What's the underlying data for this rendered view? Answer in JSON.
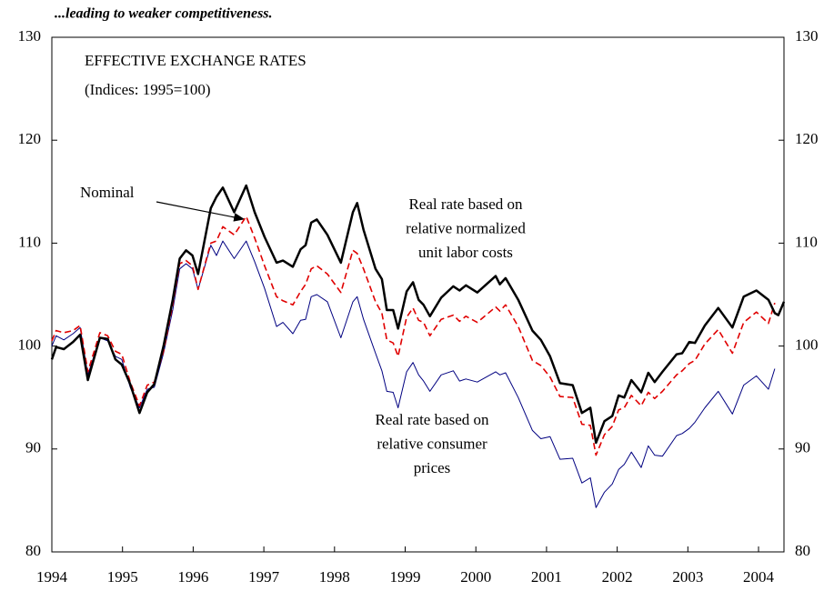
{
  "chart_data": {
    "type": "line",
    "title": "...leading to weaker competitiveness.",
    "subtitle_lines": [
      "EFFECTIVE EXCHANGE RATES",
      "(Indices:  1995=100)"
    ],
    "x": [
      1994.0,
      1994.06,
      1994.17,
      1994.3,
      1994.4,
      1994.51,
      1994.68,
      1994.79,
      1994.9,
      1994.99,
      1995.11,
      1995.24,
      1995.35,
      1995.45,
      1995.58,
      1995.71,
      1995.81,
      1995.9,
      1995.99,
      1996.07,
      1996.25,
      1996.33,
      1996.42,
      1996.58,
      1996.75,
      1996.87,
      1997.01,
      1997.18,
      1997.27,
      1997.41,
      1997.52,
      1997.59,
      1997.67,
      1997.75,
      1997.9,
      1998.09,
      1998.26,
      1998.32,
      1998.41,
      1998.58,
      1998.67,
      1998.74,
      1998.83,
      1998.9,
      1999.02,
      1999.11,
      1999.19,
      1999.26,
      1999.35,
      1999.51,
      1999.68,
      1999.77,
      1999.86,
      2000.02,
      2000.28,
      2000.34,
      2000.42,
      2000.6,
      2000.8,
      2000.92,
      2001.05,
      2001.19,
      2001.37,
      2001.5,
      2001.62,
      2001.7,
      2001.82,
      2001.93,
      2002.02,
      2002.1,
      2002.2,
      2002.34,
      2002.44,
      2002.53,
      2002.64,
      2002.84,
      2002.92,
      2003.02,
      2003.1,
      2003.24,
      2003.43,
      2003.63,
      2003.79,
      2003.97,
      2004.14,
      2004.23,
      2004.28,
      2004.36
    ],
    "series": [
      {
        "name": "Nominal",
        "color": "#000000",
        "width": 2.5,
        "dashed": false,
        "values": [
          98.7,
          99.9,
          99.7,
          100.4,
          101.1,
          96.7,
          100.8,
          100.7,
          98.7,
          98.2,
          96.3,
          93.5,
          95.5,
          96.3,
          100.0,
          104.5,
          108.5,
          109.3,
          108.8,
          107.0,
          113.4,
          114.5,
          115.4,
          113.0,
          115.6,
          113.0,
          110.6,
          108.1,
          108.3,
          107.7,
          109.4,
          109.8,
          112.0,
          112.3,
          110.8,
          108.1,
          113.0,
          113.9,
          111.3,
          107.5,
          106.5,
          103.5,
          103.5,
          101.7,
          105.3,
          106.2,
          104.5,
          104.0,
          102.9,
          104.7,
          105.8,
          105.4,
          105.9,
          105.2,
          106.8,
          106.0,
          106.6,
          104.5,
          101.5,
          100.6,
          99.0,
          96.4,
          96.2,
          93.5,
          94.0,
          90.6,
          92.7,
          93.2,
          95.2,
          95.0,
          96.7,
          95.5,
          97.4,
          96.5,
          97.5,
          99.2,
          99.3,
          100.4,
          100.3,
          102.0,
          103.7,
          101.8,
          104.8,
          105.4,
          104.5,
          103.2,
          103.0,
          104.3
        ]
      },
      {
        "color": "#e00000",
        "width": 1.6,
        "dashed": true,
        "annotation_lines": [
          "Real rate based on",
          "relative normalized",
          "unit labor costs"
        ],
        "values": [
          100.5,
          101.5,
          101.3,
          101.5,
          102.0,
          97.5,
          101.3,
          101.0,
          99.5,
          99.2,
          96.5,
          94.2,
          96.2,
          96.5,
          99.5,
          104.0,
          108.0,
          108.3,
          107.8,
          105.5,
          110.0,
          110.2,
          111.6,
          110.8,
          112.6,
          110.5,
          107.8,
          104.8,
          104.4,
          104.0,
          105.3,
          106.0,
          107.5,
          107.8,
          107.0,
          105.2,
          109.3,
          109.0,
          107.5,
          104.3,
          103.2,
          100.6,
          100.3,
          99.0,
          102.8,
          103.7,
          102.5,
          102.3,
          101.0,
          102.6,
          103.0,
          102.4,
          102.9,
          102.3,
          103.8,
          103.4,
          104.0,
          101.9,
          98.6,
          98.1,
          97.0,
          95.1,
          95.0,
          92.4,
          92.3,
          89.4,
          91.4,
          92.2,
          93.8,
          94.0,
          95.2,
          94.2,
          95.5,
          94.9,
          95.6,
          97.2,
          97.6,
          98.3,
          98.6,
          100.2,
          101.6,
          99.3,
          102.3,
          103.3,
          102.2,
          104.2,
          null,
          null
        ]
      },
      {
        "color": "#000080",
        "width": 1,
        "dashed": false,
        "annotation_lines": [
          "Real rate based on",
          "relative consumer",
          "prices"
        ],
        "values": [
          100.0,
          101.0,
          100.6,
          101.2,
          101.8,
          97.2,
          100.8,
          100.5,
          99.0,
          98.7,
          96.0,
          94.0,
          95.8,
          96.0,
          99.3,
          103.5,
          107.5,
          108.0,
          107.5,
          105.5,
          109.8,
          108.8,
          110.2,
          108.5,
          110.2,
          108.2,
          105.6,
          101.9,
          102.3,
          101.2,
          102.5,
          102.6,
          104.8,
          105.0,
          104.3,
          100.8,
          104.3,
          104.8,
          102.6,
          99.3,
          97.6,
          95.6,
          95.5,
          94.0,
          97.5,
          98.4,
          97.2,
          96.6,
          95.6,
          97.2,
          97.6,
          96.6,
          96.8,
          96.5,
          97.5,
          97.2,
          97.4,
          95.0,
          91.8,
          91.0,
          91.2,
          89.0,
          89.1,
          86.7,
          87.2,
          84.3,
          85.8,
          86.6,
          88.0,
          88.5,
          89.7,
          88.2,
          90.3,
          89.4,
          89.3,
          91.3,
          91.5,
          92.0,
          92.6,
          94.0,
          95.6,
          93.4,
          96.2,
          97.1,
          95.8,
          97.8,
          null,
          null
        ]
      }
    ],
    "xlim": [
      1994,
      2004.36
    ],
    "xticks": [
      1994,
      1995,
      1996,
      1997,
      1998,
      1999,
      2000,
      2001,
      2002,
      2003,
      2004
    ],
    "ylim": [
      80,
      130
    ],
    "yticks": [
      80,
      90,
      100,
      110,
      120,
      130
    ],
    "y2lim": [
      80,
      130
    ],
    "y2ticks": [
      80,
      90,
      100,
      110,
      120,
      130
    ]
  }
}
